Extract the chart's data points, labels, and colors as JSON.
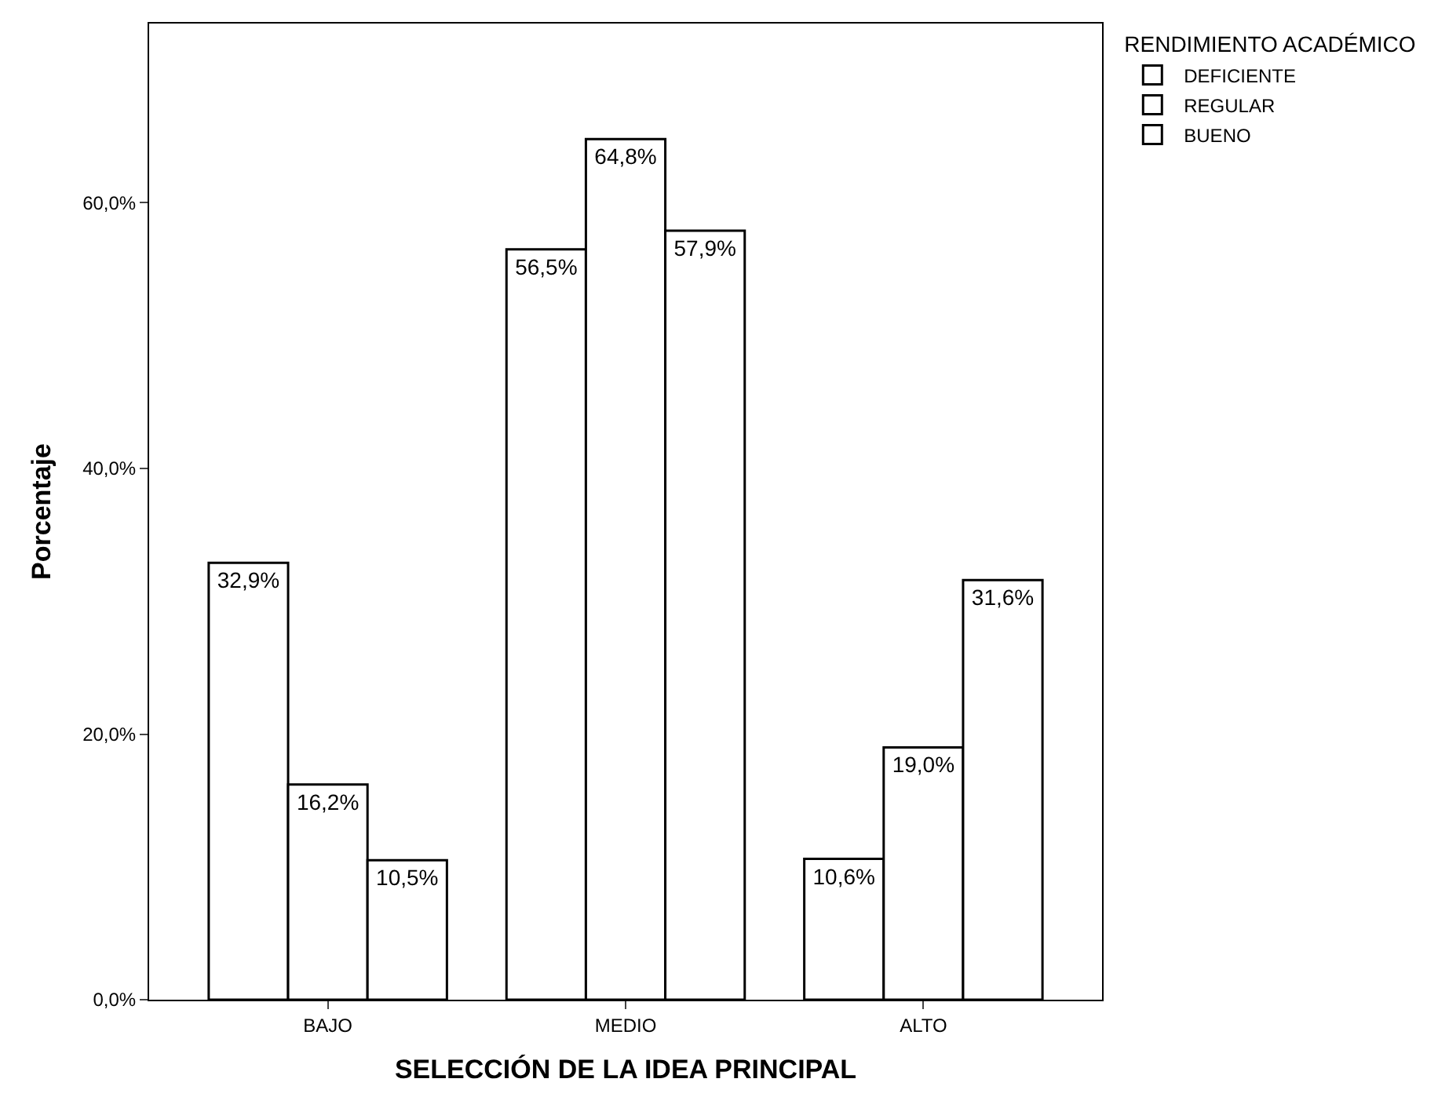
{
  "chart_data": {
    "type": "bar",
    "xlabel": "SELECCIÓN DE LA IDEA PRINCIPAL",
    "ylabel": "Porcentaje",
    "legend_title": "RENDIMIENTO ACADÉMICO",
    "categories": [
      "BAJO",
      "MEDIO",
      "ALTO"
    ],
    "series": [
      {
        "name": "DEFICIENTE",
        "color": "#ffffff",
        "values": [
          32.9,
          56.5,
          10.6
        ],
        "value_labels": [
          "32,9%",
          "56,5%",
          "10,6%"
        ]
      },
      {
        "name": "REGULAR",
        "color": "#ffffff",
        "values": [
          16.2,
          64.8,
          19.0
        ],
        "value_labels": [
          "16,2%",
          "64,8%",
          "19,0%"
        ]
      },
      {
        "name": "BUENO",
        "color": "#ffffff",
        "values": [
          10.5,
          57.9,
          31.6
        ],
        "value_labels": [
          "10,5%",
          "57,9%",
          "31,6%"
        ]
      }
    ],
    "ylim": [
      0,
      73.5
    ],
    "yticks": [
      {
        "value": 0,
        "label": "0,0%"
      },
      {
        "value": 20,
        "label": "20,0%"
      },
      {
        "value": 40,
        "label": "40,0%"
      },
      {
        "value": 60,
        "label": "60,0%"
      }
    ],
    "grid": false,
    "legend": "top right"
  }
}
